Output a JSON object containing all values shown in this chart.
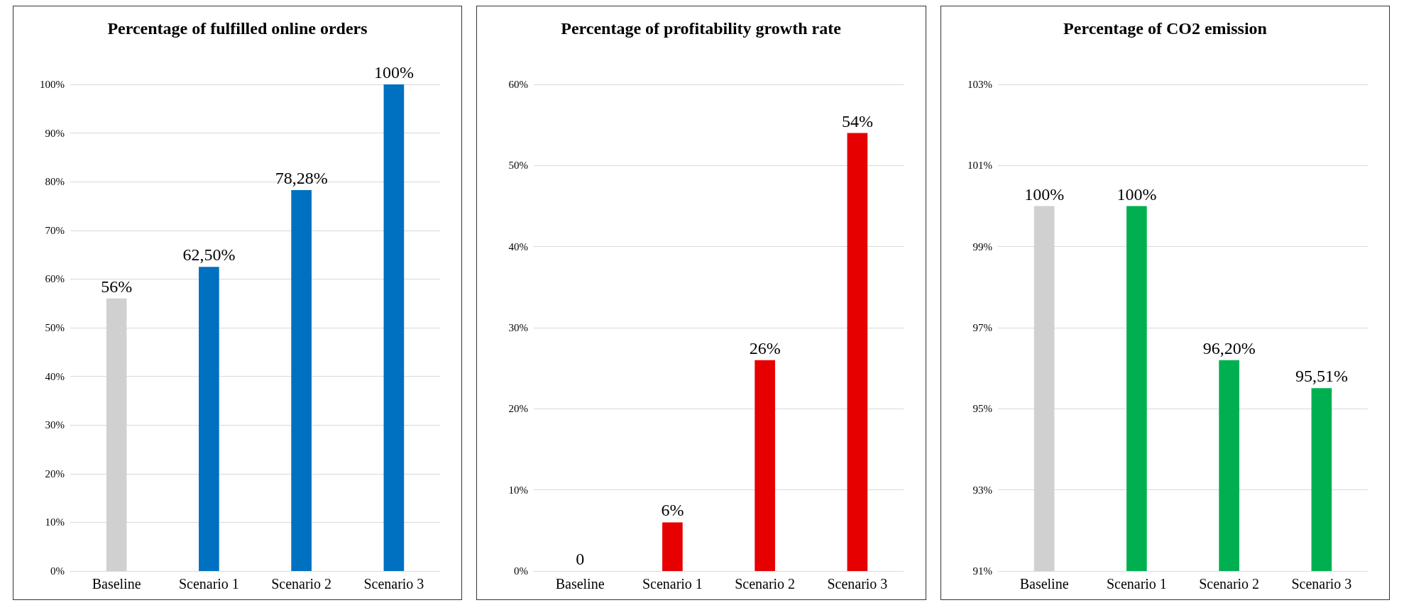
{
  "chart_data": [
    {
      "type": "bar",
      "title": "Percentage of fulfilled online orders",
      "categories": [
        "Baseline",
        "Scenario 1",
        "Scenario 2",
        "Scenario 3"
      ],
      "values": [
        56,
        62.5,
        78.28,
        100
      ],
      "colors": [
        "#d0d0d0",
        "#0070c0",
        "#0070c0",
        "#0070c0"
      ],
      "value_labels": [
        "56%",
        "62,50%",
        "78,28%",
        "100%"
      ],
      "ylim": [
        0,
        100
      ],
      "yticks": [
        {
          "value": 0,
          "label": "0%"
        },
        {
          "value": 10,
          "label": "10%"
        },
        {
          "value": 20,
          "label": "20%"
        },
        {
          "value": 30,
          "label": "30%"
        },
        {
          "value": 40,
          "label": "40%"
        },
        {
          "value": 50,
          "label": "50%"
        },
        {
          "value": 60,
          "label": "60%"
        },
        {
          "value": 70,
          "label": "70%"
        },
        {
          "value": 80,
          "label": "80%"
        },
        {
          "value": 90,
          "label": "90%"
        },
        {
          "value": 100,
          "label": "100%"
        }
      ],
      "grid": "y"
    },
    {
      "type": "bar",
      "title": "Percentage of profitability growth rate",
      "categories": [
        "Baseline",
        "Scenario 1",
        "Scenario 2",
        "Scenario 3"
      ],
      "values": [
        0,
        6,
        26,
        54
      ],
      "colors": [
        "#e60000",
        "#e60000",
        "#e60000",
        "#e60000"
      ],
      "value_labels": [
        "0",
        "6%",
        "26%",
        "54%"
      ],
      "ylim": [
        0,
        60
      ],
      "yticks": [
        {
          "value": 0,
          "label": "0%"
        },
        {
          "value": 10,
          "label": "10%"
        },
        {
          "value": 20,
          "label": "20%"
        },
        {
          "value": 30,
          "label": "30%"
        },
        {
          "value": 40,
          "label": "40%"
        },
        {
          "value": 50,
          "label": "50%"
        },
        {
          "value": 60,
          "label": "60%"
        }
      ],
      "grid": "y"
    },
    {
      "type": "bar",
      "title": "Percentage of CO2 emission",
      "categories": [
        "Baseline",
        "Scenario 1",
        "Scenario 2",
        "Scenario 3"
      ],
      "values": [
        100,
        100,
        96.2,
        95.51
      ],
      "colors": [
        "#d0d0d0",
        "#00b050",
        "#00b050",
        "#00b050"
      ],
      "value_labels": [
        "100%",
        "100%",
        "96,20%",
        "95,51%"
      ],
      "ylim": [
        91,
        103
      ],
      "yticks": [
        {
          "value": 91,
          "label": "91%"
        },
        {
          "value": 93,
          "label": "93%"
        },
        {
          "value": 95,
          "label": "95%"
        },
        {
          "value": 97,
          "label": "97%"
        },
        {
          "value": 99,
          "label": "99%"
        },
        {
          "value": 101,
          "label": "101%"
        },
        {
          "value": 103,
          "label": "103%"
        }
      ],
      "grid": "y"
    }
  ]
}
